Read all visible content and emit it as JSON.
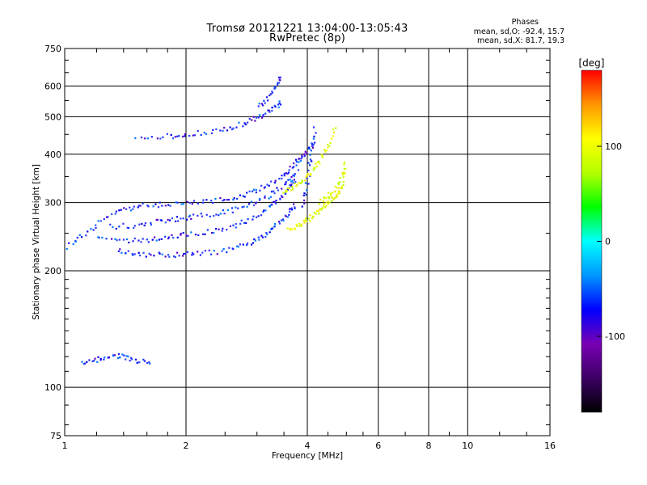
{
  "header": {
    "title_line1": "Tromsø 20121221 13:04:00-13:05:43",
    "title_line2": "RwPretec (8p)"
  },
  "stats": {
    "label": "Phases",
    "line_o": "mean, sd,O: -92.4, 15.7",
    "line_x": "mean, sd,X: 81.7, 19.3"
  },
  "chart_data": {
    "type": "scatter",
    "title": "Tromsø 20121221 13:04:00-13:05:43",
    "subtitle": "RwPretec (8p)",
    "xlabel": "Frequency [MHz]",
    "ylabel": "Stationary phase Virtual Height [km]",
    "x_scale": "log",
    "y_scale": "log",
    "xlim": [
      1,
      16
    ],
    "ylim": [
      75,
      750
    ],
    "x_ticks": [
      1,
      2,
      4,
      6,
      8,
      10,
      16
    ],
    "x_tick_labels": [
      "1",
      "2",
      "4",
      "6",
      "8",
      "10",
      "16"
    ],
    "x_minor_ticks": [
      1.2,
      1.4,
      1.6,
      1.8,
      2.5,
      3,
      3.5,
      4.5,
      5,
      5.5,
      7,
      9,
      12,
      14
    ],
    "y_ticks": [
      75,
      100,
      200,
      300,
      400,
      500,
      600,
      750
    ],
    "y_tick_labels": [
      "75",
      "100",
      "200",
      "300",
      "400",
      "500",
      "600",
      "750"
    ],
    "y_minor_ticks": [
      80,
      90,
      110,
      120,
      130,
      140,
      150,
      160,
      170,
      180,
      190,
      250,
      350,
      450,
      550,
      650,
      700
    ],
    "grid": true,
    "colorbar": {
      "label": "[deg]",
      "range": [
        -180,
        180
      ],
      "ticks": [
        100,
        0,
        -100
      ],
      "tick_labels": [
        "100",
        "0",
        "-100"
      ],
      "colors": [
        "#000000",
        "#3c0064",
        "#7800b4",
        "#0000ff",
        "#0096ff",
        "#00ffff",
        "#00ff00",
        "#b4ff00",
        "#ffff00",
        "#ff9600",
        "#ff0000"
      ]
    },
    "series": [
      {
        "name": "O",
        "phase_mean": -92.4,
        "phase_sd": 15.7,
        "color": "#2a2aff",
        "traces": [
          {
            "f": [
              1.02,
              1.12,
              1.25,
              1.4,
              1.55,
              1.75,
              2.0,
              2.3,
              2.6,
              2.9,
              3.2,
              3.5,
              3.7,
              3.85,
              4.0,
              4.2
            ],
            "h": [
              230,
              250,
              272,
              287,
              294,
              297,
              299,
              302,
              308,
              318,
              333,
              352,
              372,
              392,
              410,
              430
            ]
          },
          {
            "f": [
              1.35,
              1.5,
              1.7,
              1.9,
              2.1,
              2.4,
              2.7,
              3.0,
              3.2,
              3.4,
              3.6,
              3.75
            ],
            "h": [
              225,
              221,
              220,
              220,
              221,
              224,
              230,
              241,
              252,
              266,
              283,
              300
            ]
          },
          {
            "f": [
              1.2,
              1.4,
              1.6,
              1.8,
              2.0,
              2.3,
              2.6,
              2.9,
              3.2,
              3.4,
              3.6,
              3.75
            ],
            "h": [
              245,
              238,
              240,
              244,
              248,
              252,
              260,
              272,
              290,
              305,
              325,
              348
            ]
          },
          {
            "f": [
              1.3,
              1.5,
              1.7,
              1.9,
              2.1,
              2.4,
              2.7,
              3.0,
              3.3,
              3.6,
              3.8
            ],
            "h": [
              260,
              262,
              268,
              272,
              276,
              282,
              290,
              302,
              318,
              340,
              365
            ]
          },
          {
            "f": [
              1.5,
              1.8,
              2.0,
              2.3,
              2.6,
              2.9,
              3.1,
              3.3,
              3.45
            ],
            "h": [
              440,
              445,
              450,
              458,
              470,
              488,
              505,
              525,
              545
            ]
          },
          {
            "f": [
              3.05,
              3.2,
              3.35,
              3.45
            ],
            "h": [
              530,
              560,
              600,
              640
            ]
          },
          {
            "f": [
              3.9,
              4.0,
              4.1,
              4.2
            ],
            "h": [
              290,
              340,
              400,
              480
            ]
          },
          {
            "f": [
              1.1,
              1.2,
              1.3,
              1.4,
              1.5,
              1.65
            ],
            "h": [
              115,
              118,
              121,
              120,
              117,
              115
            ]
          }
        ]
      },
      {
        "name": "X",
        "phase_mean": 81.7,
        "phase_sd": 19.3,
        "color": "#e6ff00",
        "traces": [
          {
            "f": [
              3.6,
              3.8,
              4.0,
              4.2,
              4.4,
              4.6,
              4.8,
              4.95
            ],
            "h": [
              255,
              262,
              270,
              280,
              292,
              305,
              320,
              340
            ]
          },
          {
            "f": [
              3.5,
              3.7,
              3.9,
              4.1,
              4.3,
              4.5,
              4.7
            ],
            "h": [
              320,
              330,
              345,
              360,
              385,
              420,
              470
            ]
          },
          {
            "f": [
              4.3,
              4.5,
              4.7,
              4.9,
              5.0
            ],
            "h": [
              300,
              310,
              325,
              350,
              380
            ]
          }
        ]
      }
    ]
  }
}
